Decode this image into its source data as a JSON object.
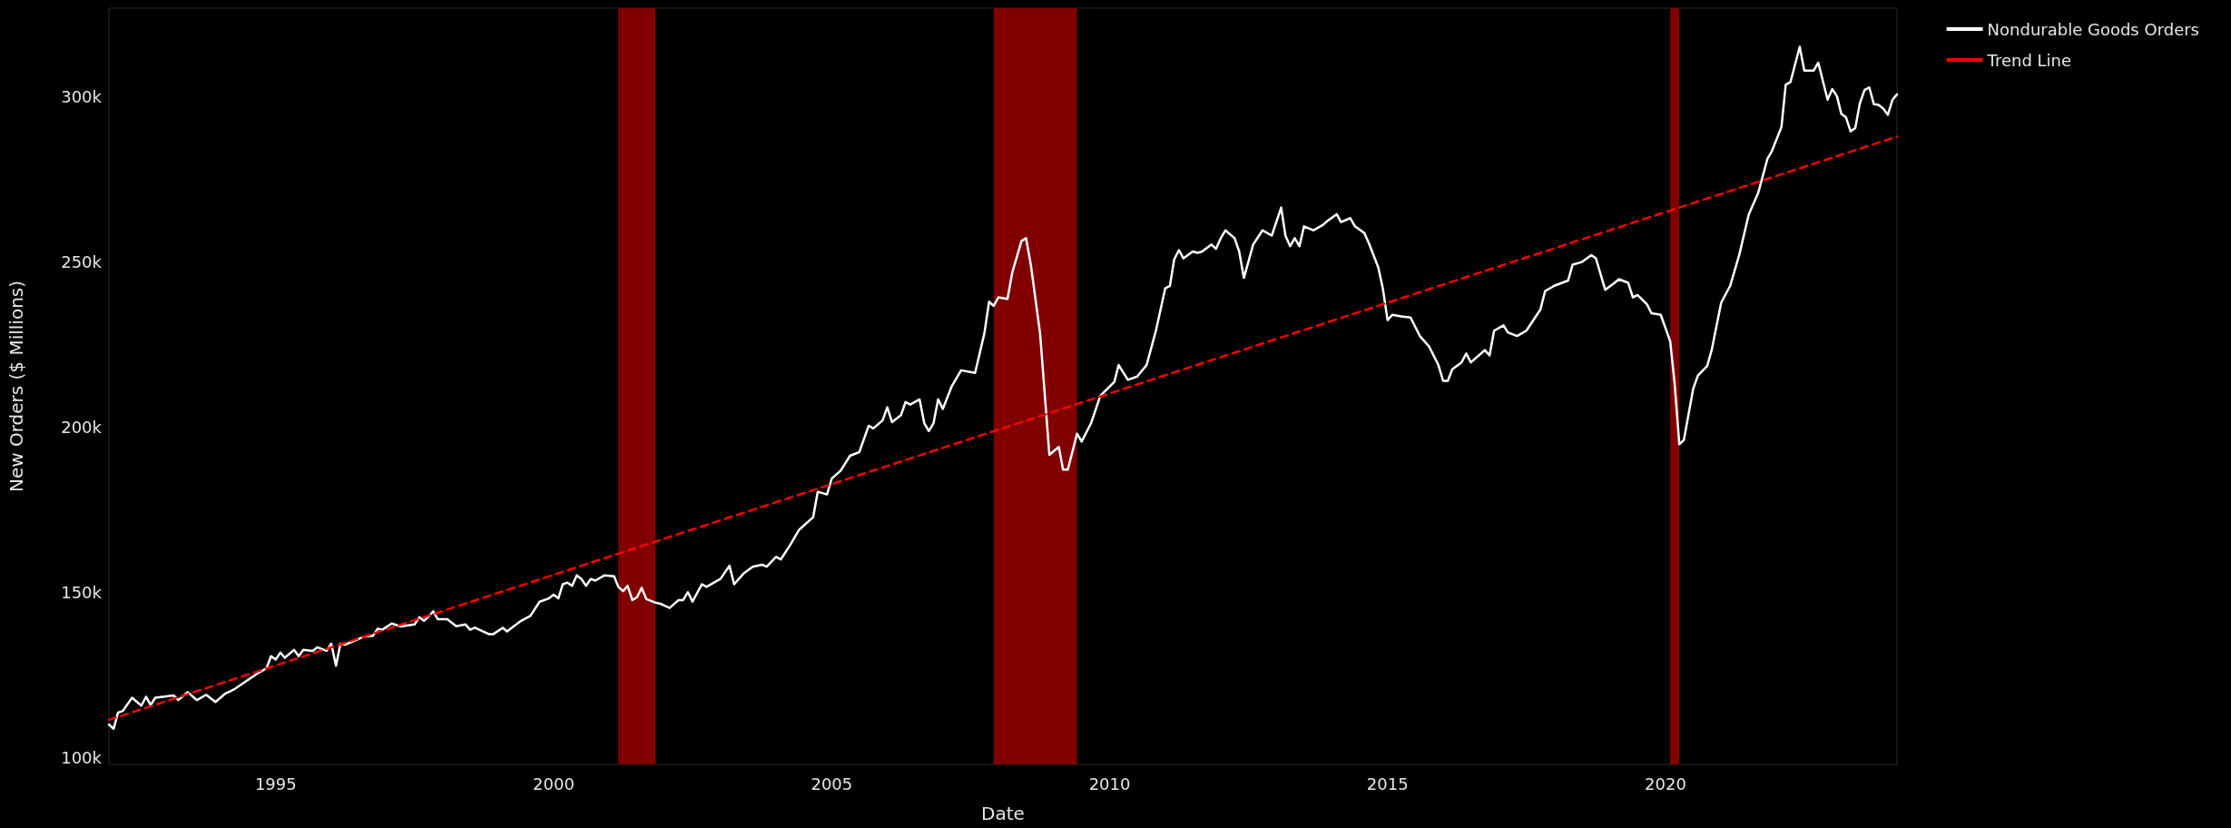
{
  "chart_data": {
    "type": "line",
    "xlabel": "Date",
    "ylabel": "New Orders ($ Millions)",
    "xlim": [
      "1992-01",
      "2024-03"
    ],
    "xticks": [
      "1995",
      "2000",
      "2005",
      "2010",
      "2015",
      "2020"
    ],
    "ylim": [
      97800,
      326900
    ],
    "yticks": [
      {
        "value": 100000,
        "label": "100k"
      },
      {
        "value": 150000,
        "label": "150k"
      },
      {
        "value": 200000,
        "label": "200k"
      },
      {
        "value": 250000,
        "label": "250k"
      },
      {
        "value": 300000,
        "label": "300k"
      }
    ],
    "grid": false,
    "legend": "top right",
    "marker": "none",
    "bands": [
      {
        "axis": "x",
        "from": "2001-03",
        "to": "2001-11",
        "color": "#800000"
      },
      {
        "axis": "x",
        "from": "2007-12",
        "to": "2009-06",
        "color": "#800000"
      },
      {
        "axis": "x",
        "from": "2020-02",
        "to": "2020-04",
        "color": "#800000"
      }
    ],
    "series": [
      {
        "name": "Nondurable Goods Orders",
        "color": "#ffffff",
        "line_style": "solid",
        "x": [
          "1992-01",
          "1992-02",
          "1992-03",
          "1992-04",
          "1992-06",
          "1992-08",
          "1992-09",
          "1992-10",
          "1992-11",
          "1993-03",
          "1993-04",
          "1993-06",
          "1993-08",
          "1993-10",
          "1993-12",
          "1994-02",
          "1994-04",
          "1994-09",
          "1994-11",
          "1994-12",
          "1995-01",
          "1995-02",
          "1995-03",
          "1995-05",
          "1995-06",
          "1995-07",
          "1995-09",
          "1995-10",
          "1995-12",
          "1996-01",
          "1996-02",
          "1996-03",
          "1996-04",
          "1996-08",
          "1996-10",
          "1996-11",
          "1996-12",
          "1997-02",
          "1997-04",
          "1997-07",
          "1997-08",
          "1997-09",
          "1997-10",
          "1997-11",
          "1997-12",
          "1998-02",
          "1998-04",
          "1998-06",
          "1998-07",
          "1998-08",
          "1998-11",
          "1998-12",
          "1999-02",
          "1999-03",
          "1999-04",
          "1999-06",
          "1999-08",
          "1999-10",
          "1999-12",
          "2000-01",
          "2000-02",
          "2000-03",
          "2000-04",
          "2000-05",
          "2000-06",
          "2000-07",
          "2000-08",
          "2000-09",
          "2000-10",
          "2000-12",
          "2001-02",
          "2001-03",
          "2001-04",
          "2001-05",
          "2001-06",
          "2001-07",
          "2001-08",
          "2001-09",
          "2001-11",
          "2001-12",
          "2002-02",
          "2002-04",
          "2002-05",
          "2002-06",
          "2002-07",
          "2002-09",
          "2002-10",
          "2003-01",
          "2003-03",
          "2003-04",
          "2003-06",
          "2003-08",
          "2003-10",
          "2003-11",
          "2004-01",
          "2004-02",
          "2004-04",
          "2004-06",
          "2004-09",
          "2004-10",
          "2004-12",
          "2005-01",
          "2005-03",
          "2005-05",
          "2005-07",
          "2005-09",
          "2005-10",
          "2005-12",
          "2006-01",
          "2006-02",
          "2006-04",
          "2006-05",
          "2006-06",
          "2006-08",
          "2006-09",
          "2006-10",
          "2006-11",
          "2006-12",
          "2007-01",
          "2007-03",
          "2007-05",
          "2007-08",
          "2007-10",
          "2007-11",
          "2007-12",
          "2008-01",
          "2008-03",
          "2008-04",
          "2008-06",
          "2008-07",
          "2008-08",
          "2008-10",
          "2008-12",
          "2009-02",
          "2009-03",
          "2009-04",
          "2009-06",
          "2009-07",
          "2009-09",
          "2009-11",
          "2010-02",
          "2010-03",
          "2010-05",
          "2010-07",
          "2010-09",
          "2010-11",
          "2011-01",
          "2011-02",
          "2011-03",
          "2011-04",
          "2011-05",
          "2011-07",
          "2011-08",
          "2011-09",
          "2011-11",
          "2011-12",
          "2012-01",
          "2012-02",
          "2012-04",
          "2012-05",
          "2012-06",
          "2012-08",
          "2012-10",
          "2012-12",
          "2013-02",
          "2013-03",
          "2013-04",
          "2013-05",
          "2013-06",
          "2013-07",
          "2013-09",
          "2013-11",
          "2013-12",
          "2014-02",
          "2014-03",
          "2014-05",
          "2014-06",
          "2014-08",
          "2014-09",
          "2014-11",
          "2014-12",
          "2015-01",
          "2015-02",
          "2015-04",
          "2015-06",
          "2015-08",
          "2015-10",
          "2015-12",
          "2016-01",
          "2016-02",
          "2016-03",
          "2016-05",
          "2016-06",
          "2016-07",
          "2016-10",
          "2016-11",
          "2016-12",
          "2017-02",
          "2017-03",
          "2017-05",
          "2017-07",
          "2017-10",
          "2017-11",
          "2018-01",
          "2018-04",
          "2018-05",
          "2018-07",
          "2018-09",
          "2018-10",
          "2018-12",
          "2019-02",
          "2019-03",
          "2019-05",
          "2019-06",
          "2019-07",
          "2019-09",
          "2019-10",
          "2019-12",
          "2020-02",
          "2020-03",
          "2020-04",
          "2020-05",
          "2020-07",
          "2020-08",
          "2020-10",
          "2020-11",
          "2021-01",
          "2021-03",
          "2021-05",
          "2021-07",
          "2021-09",
          "2021-11",
          "2021-12",
          "2022-02",
          "2022-03",
          "2022-04",
          "2022-06",
          "2022-07",
          "2022-09",
          "2022-10",
          "2022-12",
          "2023-01",
          "2023-02",
          "2023-03",
          "2023-04",
          "2023-05",
          "2023-06",
          "2023-07",
          "2023-08",
          "2023-09",
          "2023-10",
          "2023-11",
          "2023-12",
          "2024-01",
          "2024-02",
          "2024-03"
        ],
        "values": [
          109900,
          108600,
          113500,
          114000,
          118000,
          115600,
          118300,
          115800,
          118000,
          118700,
          117300,
          119700,
          117300,
          118900,
          116700,
          119200,
          120500,
          125300,
          126900,
          130600,
          129600,
          131700,
          130100,
          132500,
          130600,
          132500,
          132200,
          133300,
          132200,
          134400,
          127700,
          134400,
          134100,
          136500,
          136800,
          138900,
          138600,
          140500,
          139600,
          140200,
          142400,
          141300,
          142600,
          144200,
          141800,
          141800,
          139700,
          140200,
          138600,
          139200,
          137300,
          137300,
          139200,
          138100,
          139200,
          141300,
          142800,
          147100,
          148100,
          149200,
          148100,
          152400,
          152900,
          151900,
          155100,
          154000,
          151900,
          154000,
          153500,
          155100,
          154800,
          151600,
          150300,
          151900,
          147600,
          148400,
          151300,
          147900,
          146800,
          146500,
          145200,
          147600,
          147600,
          150000,
          147100,
          152400,
          151600,
          154000,
          158000,
          152400,
          155600,
          157700,
          158300,
          157700,
          160700,
          159900,
          164100,
          168900,
          172700,
          180400,
          179600,
          184400,
          186800,
          191300,
          192400,
          200400,
          199600,
          202000,
          206000,
          201500,
          203600,
          207600,
          206800,
          208400,
          201200,
          198800,
          201200,
          208400,
          205500,
          212400,
          217200,
          216400,
          228400,
          238000,
          236700,
          239300,
          238800,
          246800,
          256400,
          257200,
          249200,
          228400,
          191600,
          194000,
          187100,
          187100,
          198000,
          195600,
          201200,
          209500,
          213700,
          218800,
          214300,
          215300,
          218800,
          229200,
          242000,
          242800,
          250800,
          253600,
          251100,
          253200,
          252800,
          253200,
          255300,
          254000,
          257200,
          259600,
          257200,
          253200,
          245200,
          255300,
          259600,
          258000,
          266500,
          258000,
          254800,
          257200,
          254800,
          260800,
          259600,
          261200,
          262400,
          264500,
          262100,
          263300,
          260800,
          258800,
          255600,
          248400,
          242000,
          232400,
          234000,
          233500,
          233200,
          227600,
          224400,
          218800,
          214000,
          214000,
          217500,
          219600,
          222300,
          219600,
          223300,
          221700,
          229200,
          230800,
          228700,
          227600,
          229200,
          235600,
          241200,
          242800,
          244400,
          249200,
          250000,
          252100,
          251100,
          241600,
          243700,
          244800,
          243700,
          239300,
          240000,
          237200,
          234500,
          234000,
          226000,
          213200,
          194800,
          196100,
          211600,
          215600,
          218500,
          223600,
          237700,
          242800,
          252400,
          264400,
          270900,
          281300,
          283700,
          290900,
          303700,
          304500,
          315200,
          308000,
          308000,
          310400,
          299200,
          302400,
          300200,
          294900,
          293800,
          289600,
          290600,
          298100,
          302100,
          302900,
          297800,
          297600,
          296500,
          294600,
          299200,
          300800
        ]
      },
      {
        "name": "Trend Line",
        "color": "#ff0000",
        "line_style": "dashed",
        "x": [
          "1992-01",
          "2024-03"
        ],
        "values": [
          111300,
          288000
        ]
      }
    ]
  }
}
